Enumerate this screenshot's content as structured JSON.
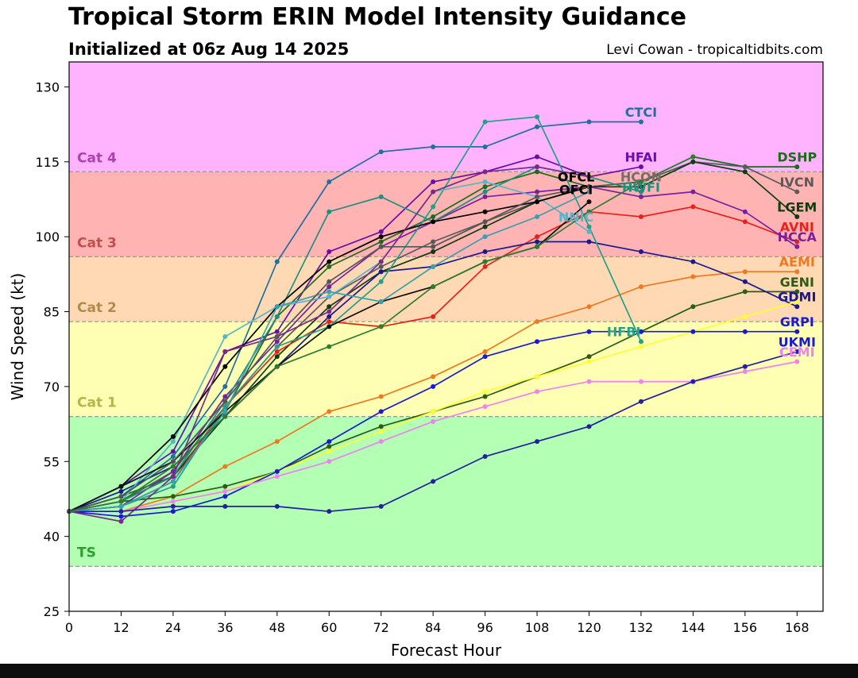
{
  "header": {
    "title": "Tropical Storm ERIN Model Intensity Guidance",
    "subtitle": "Initialized at 06z Aug 14 2025",
    "credit": "Levi Cowan - tropicaltidbits.com"
  },
  "chart_data": {
    "type": "line",
    "title": "Tropical Storm ERIN Model Intensity Guidance",
    "subtitle": "Initialized at 06z Aug 14 2025",
    "xlabel": "Forecast Hour",
    "ylabel": "Wind Speed (kt)",
    "xlim": [
      0,
      174
    ],
    "ylim": [
      25,
      135
    ],
    "xticks": [
      0,
      12,
      24,
      36,
      48,
      60,
      72,
      84,
      96,
      108,
      120,
      132,
      144,
      156,
      168
    ],
    "yticks": [
      25,
      40,
      55,
      70,
      85,
      100,
      115,
      130
    ],
    "grid": false,
    "categories_bands": [
      {
        "label": "TS",
        "from": 34,
        "to": 64,
        "color": "#b3ffb3",
        "text_color": "#2ca02c"
      },
      {
        "label": "Cat 1",
        "from": 64,
        "to": 83,
        "color": "#ffffb3",
        "text_color": "#b5b54a"
      },
      {
        "label": "Cat 2",
        "from": 83,
        "to": 96,
        "color": "#ffd9b3",
        "text_color": "#b38a4a"
      },
      {
        "label": "Cat 3",
        "from": 96,
        "to": 113,
        "color": "#ffb3b3",
        "text_color": "#c44e4e"
      },
      {
        "label": "Cat 4",
        "from": 113,
        "to": 135,
        "color": "#ffb3ff",
        "text_color": "#b040b0"
      }
    ],
    "series": [
      {
        "name": "CTCI",
        "color": "#1f6f9f",
        "x": [
          0,
          12,
          24,
          36,
          48,
          60,
          72,
          84,
          96,
          108,
          120,
          132
        ],
        "y": [
          45,
          48,
          56,
          70,
          95,
          111,
          117,
          118,
          118,
          122,
          123,
          123
        ]
      },
      {
        "name": "HFAI",
        "color": "#6a0dad",
        "x": [
          0,
          12,
          24,
          36,
          48,
          60,
          72,
          84,
          96,
          108,
          120,
          132
        ],
        "y": [
          45,
          50,
          57,
          77,
          81,
          97,
          101,
          111,
          113,
          116,
          112,
          114
        ]
      },
      {
        "name": "DSHP",
        "color": "#1e6b1e",
        "x": [
          0,
          12,
          24,
          36,
          48,
          60,
          72,
          84,
          96,
          108,
          120,
          132,
          144,
          156,
          168
        ],
        "y": [
          45,
          48,
          52,
          65,
          84,
          94,
          99,
          104,
          110,
          113,
          110,
          111,
          116,
          114,
          114
        ]
      },
      {
        "name": "IVCN",
        "color": "#5a5a5a",
        "x": [
          0,
          12,
          24,
          36,
          48,
          60,
          72,
          84,
          96,
          108,
          120,
          132,
          144,
          156,
          168
        ],
        "y": [
          45,
          47,
          53,
          66,
          78,
          88,
          94,
          99,
          103,
          107,
          110,
          111,
          115,
          114,
          109
        ]
      },
      {
        "name": "LGEM",
        "color": "#0f3d0f",
        "x": [
          0,
          12,
          24,
          36,
          48,
          60,
          72,
          84,
          96,
          108,
          120,
          132,
          144,
          156,
          168
        ],
        "y": [
          45,
          47,
          52,
          64,
          76,
          86,
          93,
          97,
          102,
          107,
          110,
          110,
          115,
          113,
          104
        ]
      },
      {
        "name": "AVNI",
        "color": "#e8221b",
        "x": [
          0,
          12,
          24,
          36,
          48,
          60,
          72,
          84,
          96,
          108,
          120,
          132,
          144,
          156,
          168
        ],
        "y": [
          45,
          46,
          51,
          66,
          77,
          83,
          82,
          84,
          94,
          100,
          105,
          104,
          106,
          103,
          99
        ]
      },
      {
        "name": "HCCA",
        "color": "#7b1fa2",
        "x": [
          0,
          12,
          24,
          36,
          48,
          60,
          72,
          84,
          96,
          108,
          120,
          132,
          144,
          156,
          168
        ],
        "y": [
          45,
          46,
          53,
          68,
          79,
          90,
          98,
          103,
          108,
          109,
          110,
          108,
          109,
          105,
          98
        ]
      },
      {
        "name": "AEMI",
        "color": "#f07820",
        "x": [
          0,
          12,
          24,
          36,
          48,
          60,
          72,
          84,
          96,
          108,
          120,
          132,
          144,
          156,
          168
        ],
        "y": [
          45,
          45,
          48,
          54,
          59,
          65,
          68,
          72,
          77,
          83,
          86,
          90,
          92,
          93,
          93
        ]
      },
      {
        "name": "GENI",
        "color": "#2d5d13",
        "x": [
          0,
          12,
          24,
          36,
          48,
          60,
          72,
          84,
          96,
          108,
          120,
          132,
          144,
          156,
          168
        ],
        "y": [
          45,
          47,
          48,
          50,
          53,
          58,
          62,
          65,
          68,
          72,
          76,
          81,
          86,
          89,
          89
        ]
      },
      {
        "name": "GDMI",
        "color": "#1a1a8c",
        "x": [
          0,
          12,
          24,
          36,
          48,
          60,
          72,
          84,
          96,
          108,
          120,
          132,
          144,
          156,
          168
        ],
        "y": [
          45,
          49,
          54,
          64,
          74,
          84,
          93,
          94,
          97,
          99,
          99,
          97,
          95,
          91,
          86
        ]
      },
      {
        "name": "GRPI",
        "color": "#ffff33",
        "x": [
          0,
          12,
          24,
          36,
          48,
          60,
          72,
          84,
          96,
          108,
          120,
          132,
          144,
          156,
          168
        ],
        "y": [
          45,
          45,
          47,
          49,
          53,
          57,
          61,
          65,
          69,
          72,
          75,
          78,
          81,
          84,
          87
        ]
      },
      {
        "name": "UKMI",
        "color": "#1a1ad6",
        "x": [
          0,
          12,
          24,
          36,
          48,
          60,
          72,
          84,
          96,
          108,
          120,
          132,
          144,
          156,
          168
        ],
        "y": [
          45,
          44,
          45,
          48,
          53,
          59,
          65,
          70,
          76,
          79,
          81,
          81,
          81,
          81,
          81
        ]
      },
      {
        "name": "CEMI",
        "color": "#ee82ee",
        "x": [
          0,
          12,
          24,
          36,
          48,
          60,
          72,
          84,
          96,
          108,
          120,
          132,
          144,
          156,
          168
        ],
        "y": [
          45,
          45,
          47,
          49,
          52,
          55,
          59,
          63,
          66,
          69,
          71,
          71,
          71,
          73,
          75
        ]
      },
      {
        "name": "HWFI",
        "color": "#1f8f7f",
        "x": [
          0,
          12,
          24,
          36,
          48,
          60,
          72,
          84,
          96,
          108,
          120,
          132
        ],
        "y": [
          45,
          47,
          52,
          67,
          84,
          105,
          108,
          103,
          109,
          114,
          112,
          109
        ]
      },
      {
        "name": "HFBI",
        "color": "#22a08a",
        "x": [
          0,
          12,
          24,
          36,
          48,
          60,
          72,
          84,
          96,
          108,
          120,
          132
        ],
        "y": [
          45,
          46,
          50,
          66,
          78,
          82,
          91,
          106,
          123,
          124,
          102,
          79
        ]
      },
      {
        "name": "NNIC",
        "color": "#5ab4c8",
        "x": [
          0,
          12,
          24,
          36,
          48,
          60,
          72,
          84,
          96,
          108,
          120
        ],
        "y": [
          45,
          47,
          59,
          80,
          86,
          88,
          95,
          109,
          111,
          108,
          101
        ]
      },
      {
        "name": "OFCL",
        "color": "#000000",
        "x": [
          0,
          12,
          24,
          36,
          48,
          60,
          72,
          84,
          96,
          108,
          120
        ],
        "y": [
          45,
          50,
          60,
          74,
          86,
          95,
          100,
          103,
          105,
          107,
          110
        ]
      },
      {
        "name": "OFCI",
        "color": "#111111",
        "x": [
          0,
          12,
          24,
          36,
          48,
          60,
          72,
          84,
          96,
          108,
          120
        ],
        "y": [
          45,
          50,
          55,
          65,
          74,
          82,
          87,
          90,
          95,
          98,
          107
        ]
      },
      {
        "name": "",
        "color": "#7b2a8a",
        "x": [
          0,
          12,
          24,
          36,
          48,
          60,
          72,
          84,
          96,
          108,
          120
        ],
        "y": [
          45,
          43,
          52,
          77,
          80,
          85,
          95,
          109,
          113,
          114,
          112
        ]
      },
      {
        "name": "",
        "color": "#2020a0",
        "x": [
          0,
          12,
          24,
          36,
          48,
          60,
          72,
          84,
          96,
          108,
          120,
          132,
          144,
          156,
          168
        ],
        "y": [
          45,
          45,
          46,
          46,
          46,
          45,
          46,
          51,
          56,
          59,
          62,
          67,
          71,
          74,
          77
        ]
      },
      {
        "name": "",
        "color": "#3aa0b0",
        "x": [
          0,
          12,
          24,
          36,
          48,
          60,
          72,
          84,
          96,
          108,
          120
        ],
        "y": [
          45,
          46,
          51,
          65,
          86,
          89,
          87,
          94,
          100,
          104,
          109
        ]
      },
      {
        "name": "",
        "color": "#2e7d32",
        "x": [
          0,
          12,
          24,
          36,
          48,
          60,
          72,
          84,
          96,
          108,
          120,
          132,
          144
        ],
        "y": [
          45,
          47,
          54,
          64,
          74,
          78,
          82,
          90,
          95,
          98,
          105,
          111,
          116
        ]
      },
      {
        "name": "",
        "color": "#555555",
        "x": [
          0,
          12,
          24,
          36,
          48,
          60,
          72,
          84,
          96,
          108,
          120
        ],
        "y": [
          45,
          48,
          55,
          67,
          80,
          91,
          98,
          98,
          103,
          108,
          110
        ]
      }
    ],
    "labels": [
      {
        "text": "CTCI",
        "color": "#1f6f9f",
        "x": 132,
        "y": 125
      },
      {
        "text": "HFAI",
        "color": "#6a0dad",
        "x": 132,
        "y": 116
      },
      {
        "text": "OFCL",
        "color": "#000000",
        "x": 117,
        "y": 112
      },
      {
        "text": "HCON",
        "color": "#7a6a6a",
        "x": 132,
        "y": 112
      },
      {
        "text": "OFCI",
        "color": "#000000",
        "x": 117,
        "y": 109.5
      },
      {
        "text": "HWFI",
        "color": "#1f8f7f",
        "x": 132,
        "y": 110
      },
      {
        "text": "NNIC",
        "color": "#5ab4c8",
        "x": 117,
        "y": 104
      },
      {
        "text": "HFBI",
        "color": "#22a08a",
        "x": 128,
        "y": 81
      },
      {
        "text": "DSHP",
        "color": "#1e6b1e",
        "x": 168,
        "y": 116
      },
      {
        "text": "IVCN",
        "color": "#5a5a5a",
        "x": 168,
        "y": 111
      },
      {
        "text": "LGEM",
        "color": "#0f3d0f",
        "x": 168,
        "y": 106
      },
      {
        "text": "AVNI",
        "color": "#e8221b",
        "x": 168,
        "y": 102
      },
      {
        "text": "HCCA",
        "color": "#7b1fa2",
        "x": 168,
        "y": 100
      },
      {
        "text": "AEMI",
        "color": "#f07820",
        "x": 168,
        "y": 95
      },
      {
        "text": "GENI",
        "color": "#2d5d13",
        "x": 168,
        "y": 91
      },
      {
        "text": "GDMI",
        "color": "#1a1a8c",
        "x": 168,
        "y": 88
      },
      {
        "text": "GRPI",
        "color": "#1a1ad6",
        "x": 168,
        "y": 83
      },
      {
        "text": "UKMI",
        "color": "#1a1ad6",
        "x": 168,
        "y": 79
      },
      {
        "text": "CEMI",
        "color": "#ee82ee",
        "x": 168,
        "y": 77
      }
    ]
  }
}
